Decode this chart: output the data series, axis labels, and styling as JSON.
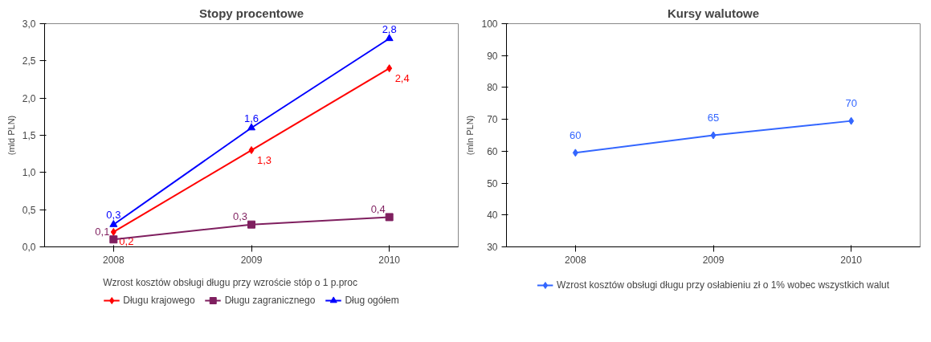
{
  "chart_data": [
    {
      "type": "line",
      "title": "Stopy procentowe",
      "ylabel": "(mld PLN)",
      "categories": [
        "2008",
        "2009",
        "2010"
      ],
      "ylim": [
        0,
        3
      ],
      "yticks": [
        {
          "value": 0,
          "label": "0,0"
        },
        {
          "value": 0.5,
          "label": "0,5"
        },
        {
          "value": 1,
          "label": "1,0"
        },
        {
          "value": 1.5,
          "label": "1,5"
        },
        {
          "value": 2,
          "label": "2,0"
        },
        {
          "value": 2.5,
          "label": "2,5"
        },
        {
          "value": 3,
          "label": "3,0"
        }
      ],
      "grid": false,
      "legend": "bottom",
      "legend_title": "Wzrost kosztów obsługi długu przy wzroście stóp o 1 p.proc",
      "series": [
        {
          "name": "Długu krajowego",
          "color": "#ff0000",
          "marker": "diamond",
          "values": [
            0.2,
            1.3,
            2.4
          ],
          "value_labels": [
            "0,2",
            "1,3",
            "2,4"
          ]
        },
        {
          "name": "Długu zagranicznego",
          "color": "#7f1f5f",
          "marker": "square",
          "values": [
            0.1,
            0.3,
            0.4
          ],
          "value_labels": [
            "0,1",
            "0,3",
            "0,4"
          ]
        },
        {
          "name": "Dług ogółem",
          "color": "#0000ff",
          "marker": "triangle",
          "values": [
            0.3,
            1.6,
            2.8
          ],
          "value_labels": [
            "0,3",
            "1,6",
            "2,8"
          ]
        }
      ]
    },
    {
      "type": "line",
      "title": "Kursy walutowe",
      "ylabel": "(mln PLN)",
      "categories": [
        "2008",
        "2009",
        "2010"
      ],
      "ylim": [
        30,
        100
      ],
      "yticks": [
        30,
        40,
        50,
        60,
        70,
        80,
        90,
        100
      ],
      "grid": false,
      "legend": "bottom",
      "series": [
        {
          "name": "Wzrost kosztów obsługi długu przy osłabieniu zł o 1% wobec wszystkich walut",
          "color": "#3366ff",
          "marker": "diamond",
          "values": [
            59.5,
            65,
            69.5
          ],
          "value_labels": [
            "60",
            "65",
            "70"
          ]
        }
      ]
    }
  ]
}
